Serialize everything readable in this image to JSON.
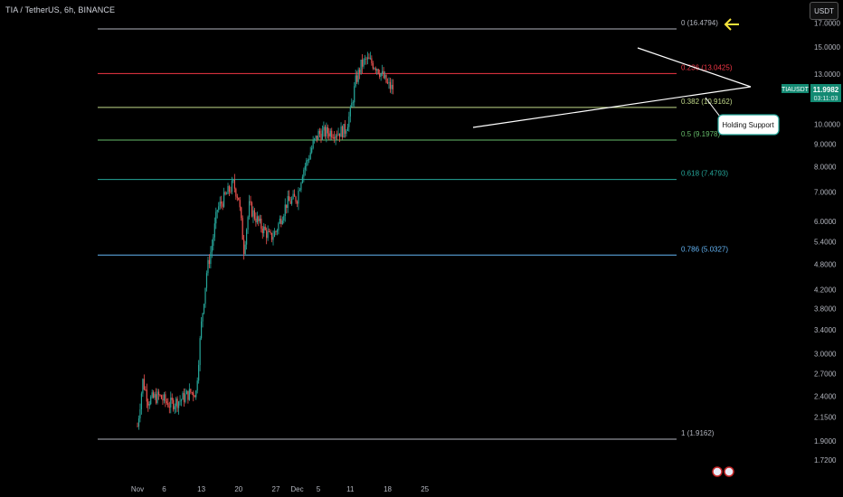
{
  "header": {
    "title": "TIA / TetherUS, 6h, BINANCE",
    "currency": "USDT"
  },
  "price_badge": {
    "symbol": "TIAUSDT",
    "price": "11.9982",
    "countdown": "03:11:03"
  },
  "annotation": {
    "text": "Holding Support"
  },
  "colors": {
    "background": "#000000",
    "up": "#26a69a",
    "down": "#ef5350",
    "trendline": "#ffffff",
    "arrow": "#f5e33b",
    "badge": "#138a73"
  },
  "chart_data": {
    "type": "candlestick",
    "y_scale": "log",
    "y_ticks": [
      "17.0000",
      "15.0000",
      "13.0000",
      "12.0000",
      "10.0000",
      "9.0000",
      "8.0000",
      "7.0000",
      "6.0000",
      "5.4000",
      "4.8000",
      "4.2000",
      "3.8000",
      "3.4000",
      "3.0000",
      "2.7000",
      "2.4000",
      "2.1500",
      "1.9000",
      "1.7200"
    ],
    "x_ticks": [
      "Nov",
      "6",
      "13",
      "20",
      "27",
      "Dec",
      "5",
      "11",
      "18",
      "25"
    ],
    "fib_levels": [
      {
        "label": "0 (16.4794)",
        "value": 16.4794,
        "color": "#b2b5be"
      },
      {
        "label": "0.236 (13.0425)",
        "value": 13.0425,
        "color": "#f23645"
      },
      {
        "label": "0.382 (10.9162)",
        "value": 10.9162,
        "color": "#c2d98a"
      },
      {
        "label": "0.5 (9.1978)",
        "value": 9.1978,
        "color": "#66bb6a"
      },
      {
        "label": "0.618 (7.4793)",
        "value": 7.4793,
        "color": "#26a69a"
      },
      {
        "label": "0.786 (5.0327)",
        "value": 5.0327,
        "color": "#64b5f6"
      },
      {
        "label": "1 (1.9162)",
        "value": 1.9162,
        "color": "#b2b5be"
      }
    ],
    "price_path": [
      [
        "Nov 1",
        2.05
      ],
      [
        "Nov 2",
        2.6
      ],
      [
        "Nov 3",
        2.35
      ],
      [
        "Nov 5",
        2.4
      ],
      [
        "Nov 7",
        2.3
      ],
      [
        "Nov 9",
        2.35
      ],
      [
        "Nov 11",
        2.45
      ],
      [
        "Nov 12",
        2.45
      ],
      [
        "Nov 13",
        3.5
      ],
      [
        "Nov 14",
        4.6
      ],
      [
        "Nov 15",
        5.3
      ],
      [
        "Nov 16",
        6.4
      ],
      [
        "Nov 18",
        7.0
      ],
      [
        "Nov 19",
        7.3
      ],
      [
        "Nov 20",
        6.8
      ],
      [
        "Nov 21",
        5.2
      ],
      [
        "Nov 22",
        6.5
      ],
      [
        "Nov 24",
        5.9
      ],
      [
        "Nov 26",
        5.5
      ],
      [
        "Nov 27",
        5.7
      ],
      [
        "Nov 29",
        6.6
      ],
      [
        "Dec 1",
        6.8
      ],
      [
        "Dec 2",
        7.8
      ],
      [
        "Dec 3",
        8.3
      ],
      [
        "Dec 4",
        9.0
      ],
      [
        "Dec 5",
        9.5
      ],
      [
        "Dec 7",
        9.6
      ],
      [
        "Dec 9",
        9.6
      ],
      [
        "Dec 10",
        9.7
      ],
      [
        "Dec 11",
        10.6
      ],
      [
        "Dec 12",
        12.5
      ],
      [
        "Dec 13",
        13.6
      ],
      [
        "Dec 14",
        14.0
      ],
      [
        "Dec 15",
        13.8
      ],
      [
        "Dec 16",
        13.5
      ],
      [
        "Dec 17",
        12.9
      ],
      [
        "Dec 18",
        12.3
      ],
      [
        "Dec 19",
        12.0
      ]
    ],
    "last_price": 11.9982
  }
}
